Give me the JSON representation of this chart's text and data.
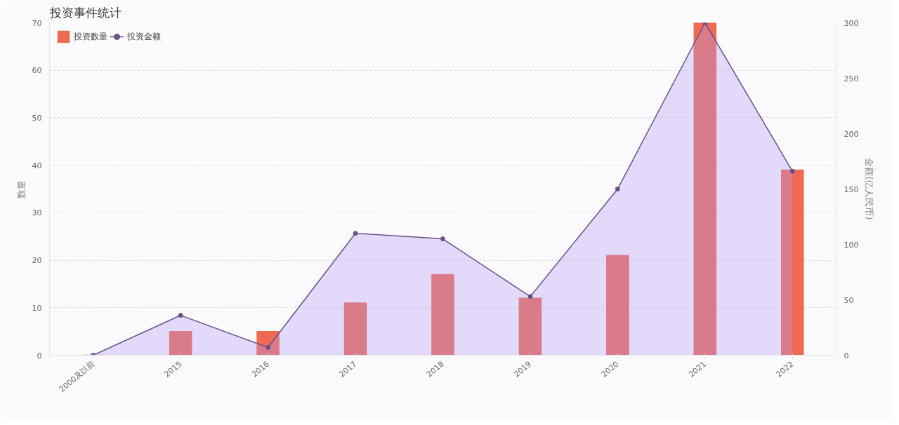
{
  "chart_data": {
    "type": "bar",
    "title": "投资事件统计",
    "ylabel": "数量",
    "y2label": "金额(亿人民币)",
    "categories": [
      "2000及以前",
      "2015",
      "2016",
      "2017",
      "2018",
      "2019",
      "2020",
      "2021",
      "2022"
    ],
    "series": [
      {
        "name": "投资数量",
        "color": "#ee6a50",
        "values": [
          0,
          5,
          5,
          11,
          17,
          12,
          21,
          70,
          39
        ]
      },
      {
        "name": "投资金额",
        "type": "area",
        "axis": "y2",
        "color": "#6b4f8a",
        "values": [
          0,
          36,
          7,
          110,
          105,
          53,
          150,
          300,
          166
        ]
      }
    ],
    "ylim": [
      0,
      70
    ],
    "yticks": [
      0,
      10,
      20,
      30,
      40,
      50,
      60,
      70
    ],
    "y2lim": [
      0,
      300
    ],
    "y2ticks": [
      0,
      50,
      100,
      150,
      200,
      250,
      300
    ],
    "grid": "y",
    "legend": "top left",
    "marker": "circle"
  }
}
